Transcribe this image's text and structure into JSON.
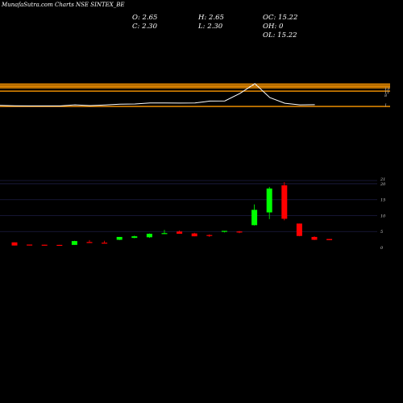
{
  "header": {
    "brand": "MunafaSutra.com",
    "title": "Charts NSE SINTEX_BE"
  },
  "ohlc": {
    "open": "O: 2.65",
    "high": "H: 2.65",
    "low": "L: 2.30",
    "close": "C: 2.30",
    "oc": "OC: 15.22",
    "oh": "OH: 0",
    "ol": "OL: 15.22"
  },
  "colors": {
    "background": "#000000",
    "up": "#00ff00",
    "down": "#ff0000",
    "band": "#ff9900",
    "indicator": "#ffffff",
    "grid": "#1e1e44"
  },
  "chart_data": [
    {
      "type": "line",
      "panel": "indicator",
      "x": [
        1,
        2,
        3,
        4,
        5,
        6,
        7,
        8,
        9,
        10,
        11,
        12,
        13,
        14,
        15,
        16,
        17,
        18,
        19,
        20,
        21,
        22
      ],
      "values": [
        1.6,
        1.2,
        1.1,
        1.1,
        1.1,
        2.2,
        1.5,
        2.1,
        3.0,
        3.2,
        4.2,
        4.3,
        4.1,
        4.2,
        6.3,
        6.5,
        14.5,
        25.0,
        10.0,
        4.0,
        2.2,
        2.4
      ],
      "bands": [
        24.5,
        22.5,
        20.5,
        17.0,
        0.5
      ],
      "tick_labels": [
        "13",
        "11",
        "8",
        "1"
      ],
      "ylim": [
        -2,
        30
      ]
    },
    {
      "type": "candlestick",
      "panel": "price",
      "x": [
        1,
        2,
        3,
        4,
        5,
        6,
        7,
        8,
        9,
        10,
        11,
        12,
        13,
        14,
        15,
        16,
        17,
        18,
        19,
        20,
        21,
        22
      ],
      "open": [
        1.6,
        0.9,
        0.85,
        0.8,
        0.8,
        1.7,
        1.5,
        2.4,
        3.0,
        3.2,
        4.3,
        5.0,
        4.4,
        3.9,
        4.9,
        5.0,
        7.0,
        11.0,
        19.5,
        7.5,
        3.3,
        2.65
      ],
      "high": [
        1.6,
        0.9,
        0.85,
        0.8,
        2.1,
        2.3,
        2.1,
        3.3,
        3.7,
        4.4,
        5.5,
        5.3,
        4.6,
        4.1,
        5.2,
        5.2,
        13.5,
        19.0,
        20.5,
        7.5,
        3.5,
        2.65
      ],
      "low": [
        0.6,
        0.6,
        0.6,
        0.6,
        0.8,
        1.5,
        1.3,
        2.3,
        2.9,
        3.0,
        4.2,
        4.3,
        3.5,
        3.3,
        4.7,
        4.5,
        6.9,
        8.9,
        8.5,
        3.5,
        2.3,
        2.3
      ],
      "close": [
        0.6,
        0.6,
        0.6,
        0.6,
        2.0,
        1.5,
        1.3,
        3.3,
        3.5,
        4.3,
        4.5,
        4.3,
        3.5,
        3.6,
        5.2,
        4.8,
        11.8,
        18.5,
        9.0,
        3.6,
        2.4,
        2.3
      ],
      "y_tick_labels": [
        "0",
        "5",
        "10",
        "15",
        "20",
        "21"
      ],
      "y_ticks": [
        0,
        5,
        10,
        15,
        20,
        21
      ],
      "ylim": [
        0,
        21
      ],
      "grid": true
    }
  ]
}
